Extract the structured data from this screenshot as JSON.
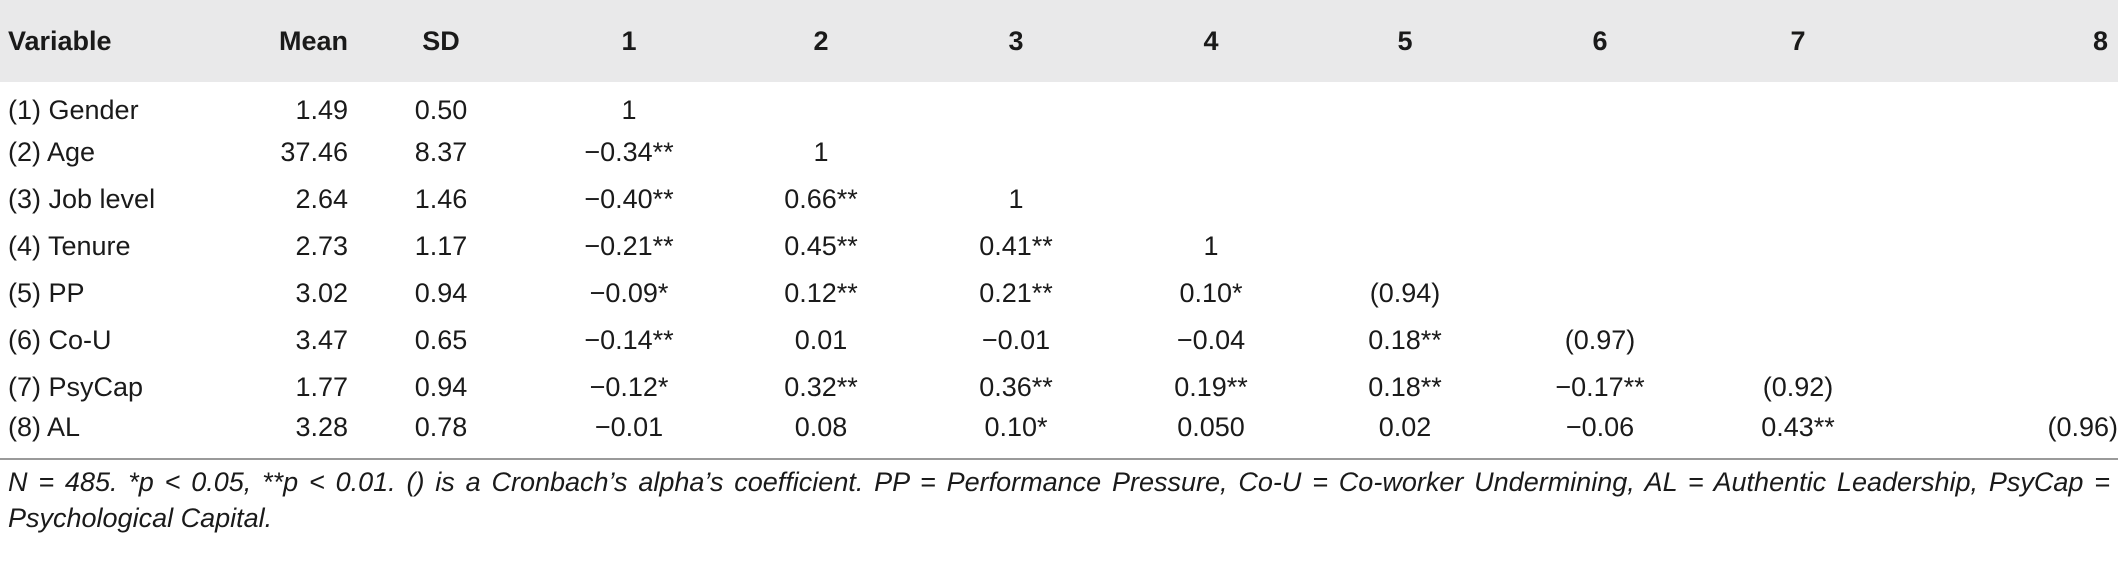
{
  "table": {
    "headers": [
      "Variable",
      "Mean",
      "SD",
      "1",
      "2",
      "3",
      "4",
      "5",
      "6",
      "7",
      "8"
    ],
    "rows": [
      {
        "variable": "(1) Gender",
        "mean": "1.49",
        "sd": "0.50",
        "c": [
          "1",
          "",
          "",
          "",
          "",
          "",
          "",
          ""
        ]
      },
      {
        "variable": "(2) Age",
        "mean": "37.46",
        "sd": "8.37",
        "c": [
          "−0.34**",
          "1",
          "",
          "",
          "",
          "",
          "",
          ""
        ]
      },
      {
        "variable": "(3) Job level",
        "mean": "2.64",
        "sd": "1.46",
        "c": [
          "−0.40**",
          "0.66**",
          "1",
          "",
          "",
          "",
          "",
          ""
        ]
      },
      {
        "variable": "(4) Tenure",
        "mean": "2.73",
        "sd": "1.17",
        "c": [
          "−0.21**",
          "0.45**",
          "0.41**",
          "1",
          "",
          "",
          "",
          ""
        ]
      },
      {
        "variable": "(5) PP",
        "mean": "3.02",
        "sd": "0.94",
        "c": [
          "−0.09*",
          "0.12**",
          "0.21**",
          "0.10*",
          "(0.94)",
          "",
          "",
          ""
        ]
      },
      {
        "variable": "(6) Co-U",
        "mean": "3.47",
        "sd": "0.65",
        "c": [
          "−0.14**",
          "0.01",
          "−0.01",
          "−0.04",
          "0.18**",
          "(0.97)",
          "",
          ""
        ]
      },
      {
        "variable": "(7) PsyCap",
        "mean": "1.77",
        "sd": "0.94",
        "c": [
          "−0.12*",
          "0.32**",
          "0.36**",
          "0.19**",
          "0.18**",
          "−0.17**",
          "(0.92)",
          ""
        ]
      },
      {
        "variable": "(8) AL",
        "mean": "3.28",
        "sd": "0.78",
        "c": [
          "−0.01",
          "0.08",
          "0.10*",
          "0.050",
          "0.02",
          "−0.06",
          "0.43**",
          "(0.96)"
        ]
      }
    ]
  },
  "note": "N = 485. *p < 0.05, **p < 0.01. () is a Cronbach’s alpha’s coefficient. PP = Performance Pressure, Co-U = Co-worker Undermining, AL = Authentic Leadership, PsyCap = Psychological Capital."
}
